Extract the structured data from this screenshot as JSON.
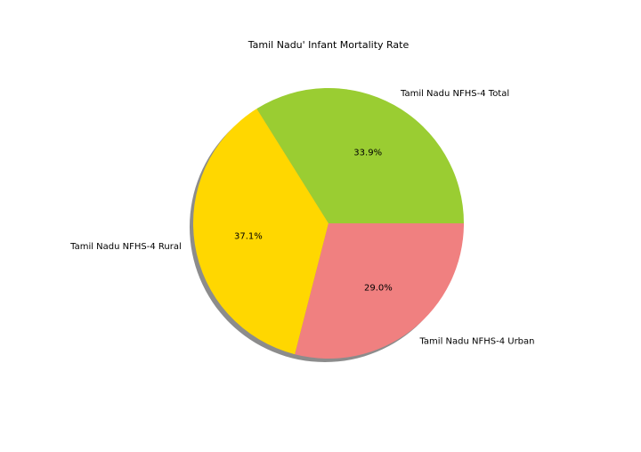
{
  "chart_data": {
    "type": "pie",
    "title": "Tamil Nadu' Infant Mortality Rate",
    "slices": [
      {
        "label": "Tamil Nadu NFHS-4 Total",
        "value": 33.9,
        "pct_label": "33.9%",
        "color": "#9ACD32"
      },
      {
        "label": "Tamil Nadu NFHS-4 Rural",
        "value": 37.1,
        "pct_label": "37.1%",
        "color": "#FFD700"
      },
      {
        "label": "Tamil Nadu NFHS-4 Urban",
        "value": 29.0,
        "pct_label": "29.0%",
        "color": "#F08080"
      }
    ],
    "start_angle_deg": 0,
    "direction": "counterclockwise",
    "shadow": true,
    "legend": "none"
  }
}
